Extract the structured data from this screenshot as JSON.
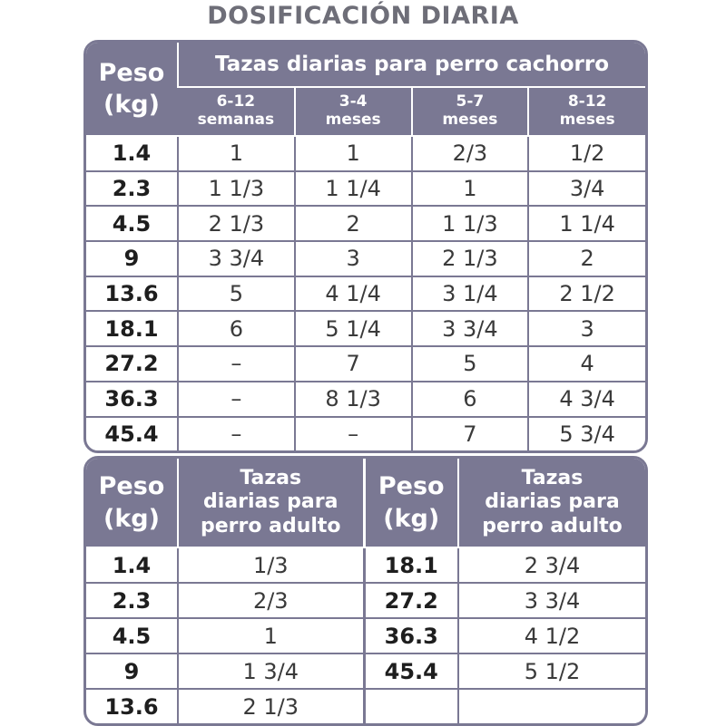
{
  "title": "DOSIFICACIÓN DIARIA",
  "puppy_table": {
    "weight_header": "Peso\n(kg)",
    "group_header": "Tazas diarias para perro cachorro",
    "age_headers": [
      "6-12\nsemanas",
      "3-4\nmeses",
      "5-7\nmeses",
      "8-12\nmeses"
    ],
    "rows": [
      {
        "weight": "1.4",
        "values": [
          "1",
          "1",
          "2/3",
          "1/2"
        ]
      },
      {
        "weight": "2.3",
        "values": [
          "1 1/3",
          "1 1/4",
          "1",
          "3/4"
        ]
      },
      {
        "weight": "4.5",
        "values": [
          "2 1/3",
          "2",
          "1 1/3",
          "1 1/4"
        ]
      },
      {
        "weight": "9",
        "values": [
          "3 3/4",
          "3",
          "2 1/3",
          "2"
        ]
      },
      {
        "weight": "13.6",
        "values": [
          "5",
          "4 1/4",
          "3 1/4",
          "2 1/2"
        ]
      },
      {
        "weight": "18.1",
        "values": [
          "6",
          "5 1/4",
          "3 3/4",
          "3"
        ]
      },
      {
        "weight": "27.2",
        "values": [
          "–",
          "7",
          "5",
          "4"
        ]
      },
      {
        "weight": "36.3",
        "values": [
          "–",
          "8 1/3",
          "6",
          "4 3/4"
        ]
      },
      {
        "weight": "45.4",
        "values": [
          "–",
          "–",
          "7",
          "5 3/4"
        ]
      }
    ]
  },
  "adult_table": {
    "weight_header": "Peso\n(kg)",
    "cups_header": "Tazas\ndiarias para\nperro adulto",
    "left_rows": [
      {
        "weight": "1.4",
        "value": "1/3"
      },
      {
        "weight": "2.3",
        "value": "2/3"
      },
      {
        "weight": "4.5",
        "value": "1"
      },
      {
        "weight": "9",
        "value": "1 3/4"
      },
      {
        "weight": "13.6",
        "value": "2 1/3"
      }
    ],
    "right_rows": [
      {
        "weight": "18.1",
        "value": "2 3/4"
      },
      {
        "weight": "27.2",
        "value": "3 3/4"
      },
      {
        "weight": "36.3",
        "value": "4 1/2"
      },
      {
        "weight": "45.4",
        "value": "5 1/2"
      },
      {
        "weight": "",
        "value": ""
      }
    ]
  },
  "colors": {
    "header": "#7a7893",
    "title": "#6e6e78",
    "text": "#222222"
  }
}
